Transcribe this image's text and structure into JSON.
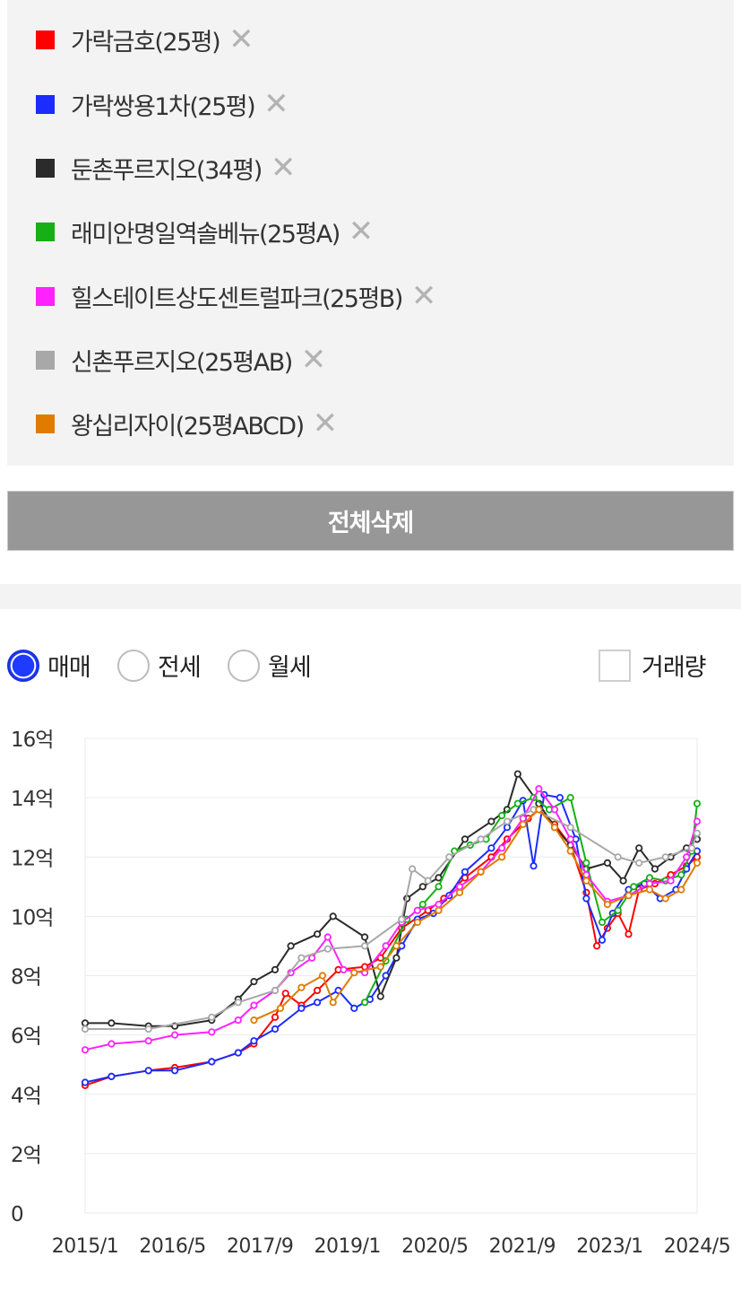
{
  "legend": {
    "items": [
      {
        "label": "가락금호(25평)",
        "color": "#ff0000"
      },
      {
        "label": "가락쌍용1차(25평)",
        "color": "#1a2cff"
      },
      {
        "label": "둔촌푸르지오(34평)",
        "color": "#2b2b2b"
      },
      {
        "label": "래미안명일역솔베뉴(25평A)",
        "color": "#16b016"
      },
      {
        "label": "힐스테이트상도센트럴파크(25평B)",
        "color": "#ff22ff"
      },
      {
        "label": "신촌푸르지오(25평AB)",
        "color": "#a8a8a8"
      },
      {
        "label": "왕십리자이(25평ABCD)",
        "color": "#e07b00"
      }
    ],
    "remove_icon": "close-icon"
  },
  "delete_all_label": "전체삭제",
  "trade_type": {
    "options": [
      "매매",
      "전세",
      "월세"
    ],
    "selected": "매매",
    "volume_label": "거래량",
    "volume_checked": false
  },
  "chart_data": {
    "type": "line",
    "ylim": [
      0,
      16
    ],
    "y_ticks": [
      "0",
      "2억",
      "4억",
      "6억",
      "8억",
      "10억",
      "12억",
      "14억",
      "16억"
    ],
    "y_unit": "억",
    "x_ticks": [
      "2015/1",
      "2016/5",
      "2017/9",
      "2019/1",
      "2020/5",
      "2021/9",
      "2023/1",
      "2024/5"
    ],
    "x_range": [
      "2015-01",
      "2024-09"
    ],
    "grid": true,
    "series": [
      {
        "name": "가락금호(25평)",
        "color": "#ff0000",
        "points": [
          [
            "2015-01",
            4.3
          ],
          [
            "2015-06",
            4.6
          ],
          [
            "2016-01",
            4.8
          ],
          [
            "2016-06",
            4.9
          ],
          [
            "2017-01",
            5.1
          ],
          [
            "2017-06",
            5.4
          ],
          [
            "2017-09",
            5.7
          ],
          [
            "2018-01",
            6.6
          ],
          [
            "2018-03",
            7.4
          ],
          [
            "2018-06",
            7.0
          ],
          [
            "2018-09",
            7.5
          ],
          [
            "2019-01",
            8.2
          ],
          [
            "2019-06",
            8.3
          ],
          [
            "2019-09",
            8.6
          ],
          [
            "2020-01",
            9.6
          ],
          [
            "2020-06",
            10.2
          ],
          [
            "2020-09",
            10.6
          ],
          [
            "2021-01",
            11.3
          ],
          [
            "2021-06",
            12.0
          ],
          [
            "2021-09",
            12.6
          ],
          [
            "2022-01",
            13.3
          ],
          [
            "2022-03",
            13.6
          ],
          [
            "2022-06",
            13.1
          ],
          [
            "2022-09",
            12.4
          ],
          [
            "2022-12",
            10.8
          ],
          [
            "2023-02",
            9.0
          ],
          [
            "2023-04",
            9.6
          ],
          [
            "2023-06",
            10.1
          ],
          [
            "2023-08",
            9.4
          ],
          [
            "2023-10",
            10.9
          ],
          [
            "2024-01",
            11.1
          ],
          [
            "2024-04",
            11.4
          ],
          [
            "2024-07",
            11.7
          ],
          [
            "2024-09",
            12.0
          ]
        ]
      },
      {
        "name": "가락쌍용1차(25평)",
        "color": "#1a2cff",
        "points": [
          [
            "2015-01",
            4.4
          ],
          [
            "2015-06",
            4.6
          ],
          [
            "2016-01",
            4.8
          ],
          [
            "2016-06",
            4.8
          ],
          [
            "2017-01",
            5.1
          ],
          [
            "2017-06",
            5.4
          ],
          [
            "2017-09",
            5.8
          ],
          [
            "2018-01",
            6.2
          ],
          [
            "2018-06",
            6.9
          ],
          [
            "2018-09",
            7.1
          ],
          [
            "2019-01",
            7.5
          ],
          [
            "2019-04",
            6.9
          ],
          [
            "2019-07",
            7.2
          ],
          [
            "2019-10",
            8.0
          ],
          [
            "2020-01",
            9.0
          ],
          [
            "2020-04",
            9.9
          ],
          [
            "2020-07",
            10.1
          ],
          [
            "2020-10",
            10.7
          ],
          [
            "2021-01",
            11.5
          ],
          [
            "2021-06",
            12.3
          ],
          [
            "2021-09",
            13.0
          ],
          [
            "2021-12",
            13.9
          ],
          [
            "2022-02",
            11.7
          ],
          [
            "2022-04",
            14.1
          ],
          [
            "2022-07",
            14.0
          ],
          [
            "2022-10",
            12.6
          ],
          [
            "2022-12",
            10.6
          ],
          [
            "2023-03",
            9.2
          ],
          [
            "2023-05",
            10.1
          ],
          [
            "2023-08",
            10.9
          ],
          [
            "2023-11",
            11.1
          ],
          [
            "2024-02",
            10.6
          ],
          [
            "2024-05",
            10.9
          ],
          [
            "2024-07",
            11.6
          ],
          [
            "2024-09",
            12.2
          ]
        ]
      },
      {
        "name": "둔촌푸르지오(34평)",
        "color": "#2b2b2b",
        "points": [
          [
            "2015-01",
            6.4
          ],
          [
            "2015-06",
            6.4
          ],
          [
            "2016-01",
            6.3
          ],
          [
            "2016-06",
            6.3
          ],
          [
            "2017-01",
            6.5
          ],
          [
            "2017-06",
            7.2
          ],
          [
            "2017-09",
            7.8
          ],
          [
            "2018-01",
            8.2
          ],
          [
            "2018-04",
            9.0
          ],
          [
            "2018-09",
            9.4
          ],
          [
            "2018-12",
            10.0
          ],
          [
            "2019-06",
            9.3
          ],
          [
            "2019-09",
            7.3
          ],
          [
            "2019-12",
            8.6
          ],
          [
            "2020-02",
            10.6
          ],
          [
            "2020-05",
            11.0
          ],
          [
            "2020-08",
            11.3
          ],
          [
            "2021-01",
            12.6
          ],
          [
            "2021-06",
            13.2
          ],
          [
            "2021-09",
            13.6
          ],
          [
            "2021-11",
            14.8
          ],
          [
            "2022-03",
            13.8
          ],
          [
            "2022-06",
            13.0
          ],
          [
            "2022-09",
            12.4
          ],
          [
            "2022-12",
            11.6
          ],
          [
            "2023-04",
            11.8
          ],
          [
            "2023-07",
            11.2
          ],
          [
            "2023-10",
            12.3
          ],
          [
            "2024-01",
            11.6
          ],
          [
            "2024-04",
            12.0
          ],
          [
            "2024-07",
            12.3
          ],
          [
            "2024-09",
            12.6
          ]
        ]
      },
      {
        "name": "래미안명일역솔베뉴(25평A)",
        "color": "#16b016",
        "points": [
          [
            "2019-06",
            7.1
          ],
          [
            "2019-10",
            8.5
          ],
          [
            "2020-02",
            9.9
          ],
          [
            "2020-05",
            10.4
          ],
          [
            "2020-08",
            11.0
          ],
          [
            "2020-11",
            12.2
          ],
          [
            "2021-02",
            12.4
          ],
          [
            "2021-05",
            12.6
          ],
          [
            "2021-08",
            13.4
          ],
          [
            "2021-11",
            13.8
          ],
          [
            "2022-02",
            14.0
          ],
          [
            "2022-05",
            13.6
          ],
          [
            "2022-09",
            14.0
          ],
          [
            "2022-12",
            11.8
          ],
          [
            "2023-03",
            9.8
          ],
          [
            "2023-06",
            10.2
          ],
          [
            "2023-09",
            11.0
          ],
          [
            "2023-12",
            11.3
          ],
          [
            "2024-03",
            11.2
          ],
          [
            "2024-06",
            11.4
          ],
          [
            "2024-08",
            12.2
          ],
          [
            "2024-09",
            13.8
          ]
        ]
      },
      {
        "name": "힐스테이트상도센트럴파크(25평B)",
        "color": "#ff22ff",
        "points": [
          [
            "2015-01",
            5.5
          ],
          [
            "2015-06",
            5.7
          ],
          [
            "2016-01",
            5.8
          ],
          [
            "2016-06",
            6.0
          ],
          [
            "2017-01",
            6.1
          ],
          [
            "2017-06",
            6.5
          ],
          [
            "2017-09",
            7.0
          ],
          [
            "2018-01",
            7.5
          ],
          [
            "2018-04",
            8.1
          ],
          [
            "2018-08",
            8.6
          ],
          [
            "2018-11",
            9.3
          ],
          [
            "2019-02",
            8.2
          ],
          [
            "2019-06",
            8.1
          ],
          [
            "2019-10",
            9.0
          ],
          [
            "2020-01",
            9.8
          ],
          [
            "2020-04",
            10.2
          ],
          [
            "2020-08",
            10.4
          ],
          [
            "2020-12",
            11.0
          ],
          [
            "2021-04",
            11.5
          ],
          [
            "2021-08",
            12.3
          ],
          [
            "2021-12",
            13.3
          ],
          [
            "2022-03",
            14.3
          ],
          [
            "2022-06",
            13.6
          ],
          [
            "2022-09",
            12.6
          ],
          [
            "2022-12",
            11.4
          ],
          [
            "2023-04",
            10.5
          ],
          [
            "2023-08",
            10.7
          ],
          [
            "2023-12",
            11.1
          ],
          [
            "2024-04",
            11.2
          ],
          [
            "2024-07",
            12.0
          ],
          [
            "2024-09",
            13.2
          ]
        ]
      },
      {
        "name": "신촌푸르지오(25평AB)",
        "color": "#a8a8a8",
        "points": [
          [
            "2015-01",
            6.2
          ],
          [
            "2016-01",
            6.2
          ],
          [
            "2017-01",
            6.6
          ],
          [
            "2017-06",
            7.1
          ],
          [
            "2018-01",
            7.5
          ],
          [
            "2018-06",
            8.6
          ],
          [
            "2018-11",
            8.9
          ],
          [
            "2019-06",
            9.0
          ],
          [
            "2020-01",
            9.9
          ],
          [
            "2020-03",
            11.6
          ],
          [
            "2020-06",
            11.2
          ],
          [
            "2020-10",
            12.0
          ],
          [
            "2021-04",
            12.6
          ],
          [
            "2021-09",
            13.2
          ],
          [
            "2022-02",
            13.6
          ],
          [
            "2022-09",
            13.0
          ],
          [
            "2023-06",
            12.0
          ],
          [
            "2023-10",
            11.8
          ],
          [
            "2024-03",
            12.0
          ],
          [
            "2024-08",
            12.3
          ],
          [
            "2024-09",
            12.8
          ]
        ]
      },
      {
        "name": "왕십리자이(25평ABCD)",
        "color": "#e07b00",
        "points": [
          [
            "2017-09",
            6.5
          ],
          [
            "2018-02",
            6.9
          ],
          [
            "2018-06",
            7.6
          ],
          [
            "2018-10",
            8.0
          ],
          [
            "2018-12",
            7.1
          ],
          [
            "2019-04",
            8.1
          ],
          [
            "2019-09",
            8.3
          ],
          [
            "2019-12",
            9.0
          ],
          [
            "2020-04",
            9.8
          ],
          [
            "2020-08",
            10.2
          ],
          [
            "2020-12",
            10.8
          ],
          [
            "2021-04",
            11.5
          ],
          [
            "2021-08",
            12.0
          ],
          [
            "2021-12",
            13.1
          ],
          [
            "2022-03",
            13.6
          ],
          [
            "2022-06",
            13.0
          ],
          [
            "2022-09",
            12.2
          ],
          [
            "2022-12",
            11.2
          ],
          [
            "2023-04",
            10.4
          ],
          [
            "2023-08",
            10.7
          ],
          [
            "2023-12",
            10.9
          ],
          [
            "2024-03",
            10.6
          ],
          [
            "2024-06",
            10.9
          ],
          [
            "2024-09",
            11.8
          ]
        ]
      }
    ]
  }
}
